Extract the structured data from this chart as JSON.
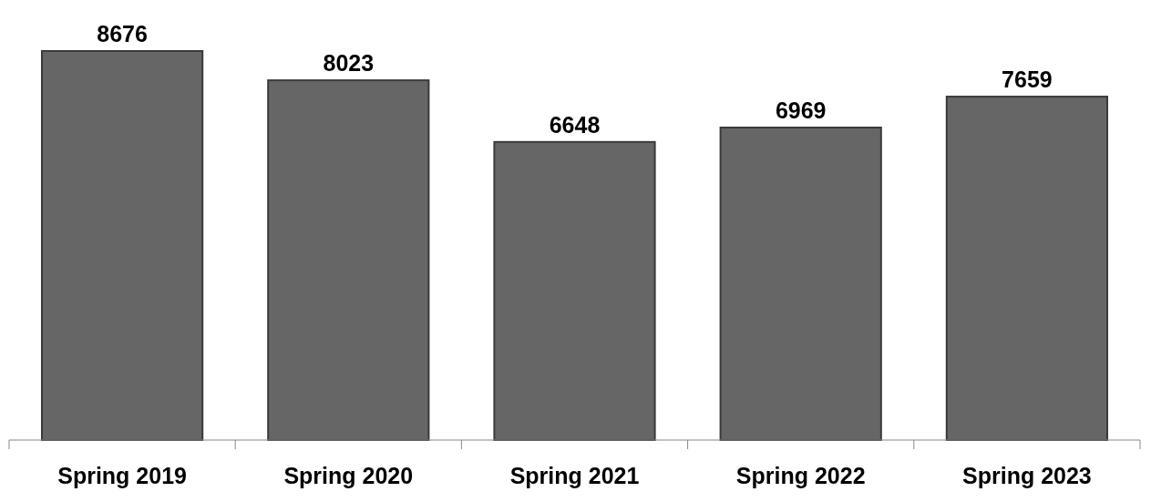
{
  "chart_data": {
    "type": "bar",
    "categories": [
      "Spring 2019",
      "Spring 2020",
      "Spring 2021",
      "Spring 2022",
      "Spring 2023"
    ],
    "values": [
      8676,
      8023,
      6648,
      6969,
      7659
    ],
    "color": "#666666",
    "data_labels": true
  }
}
